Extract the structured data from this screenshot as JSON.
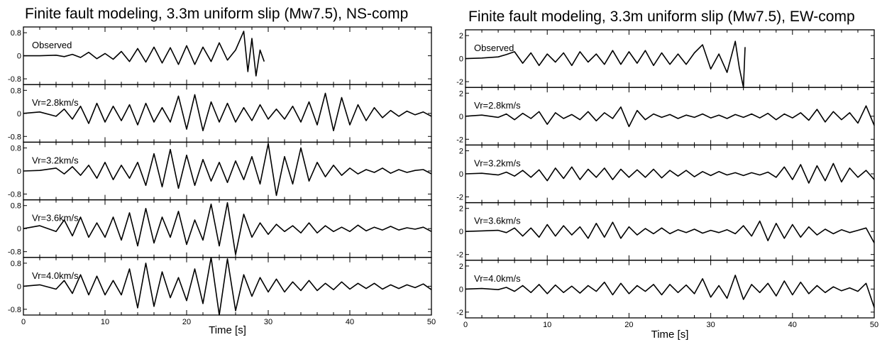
{
  "chart_data": [
    {
      "type": "line",
      "title": "Finite fault modeling, 3.3m uniform slip (Mw7.5), NS-comp",
      "xlabel": "Time [s]",
      "xlim": [
        0,
        50
      ],
      "xticks": [
        "0",
        "10",
        "20",
        "30",
        "40",
        "50"
      ],
      "ylim": [
        -1.0,
        1.0
      ],
      "yticks": [
        "0.8",
        "0",
        "-0.8"
      ],
      "grid": false,
      "series": [
        {
          "name": "Observed",
          "x": [
            0,
            2,
            4,
            5,
            6,
            7,
            8,
            9,
            10,
            11,
            12,
            13,
            14,
            15,
            16,
            17,
            18,
            19,
            20,
            21,
            22,
            23,
            24,
            25,
            26,
            27,
            27.5,
            28,
            28.5,
            29,
            29.5
          ],
          "y": [
            0,
            0,
            0.02,
            -0.03,
            0.05,
            -0.06,
            0.12,
            -0.1,
            0.08,
            -0.12,
            0.15,
            -0.2,
            0.25,
            -0.22,
            0.3,
            -0.25,
            0.28,
            -0.3,
            0.35,
            -0.3,
            0.3,
            -0.2,
            0.45,
            -0.15,
            0.2,
            0.85,
            -0.55,
            0.6,
            -0.7,
            0.2,
            -0.2
          ]
        },
        {
          "name": "Vr=2.8km/s",
          "x": [
            0,
            2,
            4,
            5,
            6,
            7,
            8,
            9,
            10,
            11,
            12,
            13,
            14,
            15,
            16,
            17,
            18,
            19,
            20,
            21,
            22,
            23,
            24,
            25,
            26,
            27,
            28,
            29,
            30,
            31,
            32,
            33,
            34,
            35,
            36,
            37,
            38,
            39,
            40,
            41,
            42,
            43,
            44,
            45,
            46,
            47,
            48,
            49,
            50
          ],
          "y": [
            0,
            0.05,
            -0.1,
            0.15,
            -0.2,
            0.25,
            -0.35,
            0.35,
            -0.3,
            0.25,
            -0.25,
            0.3,
            -0.4,
            0.35,
            -0.3,
            0.2,
            -0.3,
            0.6,
            -0.55,
            0.65,
            -0.6,
            0.4,
            -0.3,
            0.35,
            -0.3,
            0.2,
            -0.25,
            0.3,
            -0.2,
            0.15,
            -0.2,
            0.25,
            -0.3,
            0.4,
            -0.4,
            0.7,
            -0.6,
            0.55,
            -0.4,
            0.3,
            -0.25,
            0.2,
            -0.15,
            0.1,
            -0.1,
            0.08,
            -0.05,
            0.05,
            -0.1
          ]
        },
        {
          "name": "Vr=3.2km/s",
          "x": [
            0,
            2,
            4,
            5,
            6,
            7,
            8,
            9,
            10,
            11,
            12,
            13,
            14,
            15,
            16,
            17,
            18,
            19,
            20,
            21,
            22,
            23,
            24,
            25,
            26,
            27,
            28,
            29,
            30,
            31,
            32,
            33,
            34,
            35,
            36,
            37,
            38,
            39,
            40,
            41,
            42,
            43,
            44,
            45,
            46,
            47,
            48,
            49,
            50
          ],
          "y": [
            0,
            0.02,
            0.1,
            -0.1,
            0.15,
            -0.15,
            0.2,
            -0.25,
            0.3,
            -0.3,
            0.2,
            -0.25,
            0.3,
            -0.5,
            0.6,
            -0.55,
            0.75,
            -0.6,
            0.55,
            -0.5,
            0.4,
            -0.35,
            0.3,
            -0.4,
            0.35,
            -0.3,
            0.5,
            -0.45,
            0.95,
            -0.85,
            0.5,
            -0.45,
            0.8,
            -0.35,
            0.3,
            -0.2,
            0.2,
            -0.15,
            0.1,
            -0.1,
            0.05,
            -0.05,
            0.1,
            -0.08,
            0.05,
            -0.05,
            0.02,
            0.05,
            -0.1
          ]
        },
        {
          "name": "Vr=3.6km/s",
          "x": [
            0,
            2,
            4,
            5,
            6,
            7,
            8,
            9,
            10,
            11,
            12,
            13,
            14,
            15,
            16,
            17,
            18,
            19,
            20,
            21,
            22,
            23,
            24,
            25,
            26,
            27,
            28,
            29,
            30,
            31,
            32,
            33,
            34,
            35,
            36,
            37,
            38,
            39,
            40,
            41,
            42,
            43,
            44,
            45,
            46,
            47,
            48,
            49,
            50
          ],
          "y": [
            0,
            0.1,
            -0.1,
            0.3,
            -0.25,
            0.4,
            -0.3,
            0.2,
            -0.3,
            0.4,
            -0.4,
            0.55,
            -0.6,
            0.7,
            -0.5,
            0.4,
            -0.3,
            0.6,
            -0.55,
            0.3,
            -0.4,
            0.85,
            -0.6,
            0.9,
            -0.9,
            0.5,
            -0.3,
            0.2,
            -0.2,
            0.15,
            -0.1,
            0.1,
            -0.15,
            0.2,
            -0.15,
            0.1,
            -0.1,
            0.05,
            -0.1,
            0.12,
            -0.08,
            0.05,
            -0.05,
            0.08,
            -0.05,
            0.03,
            -0.02,
            0.05,
            -0.1
          ]
        },
        {
          "name": "Vr=4.0km/s",
          "x": [
            0,
            2,
            4,
            5,
            6,
            7,
            8,
            9,
            10,
            11,
            12,
            13,
            14,
            15,
            16,
            17,
            18,
            19,
            20,
            21,
            22,
            23,
            24,
            25,
            26,
            27,
            28,
            29,
            30,
            31,
            32,
            33,
            34,
            35,
            36,
            37,
            38,
            39,
            40,
            41,
            42,
            43,
            44,
            45,
            46,
            47,
            48,
            49,
            50
          ],
          "y": [
            0,
            0.05,
            -0.1,
            0.2,
            -0.25,
            0.4,
            -0.3,
            0.35,
            -0.3,
            0.2,
            -0.3,
            0.6,
            -0.75,
            0.8,
            -0.7,
            0.5,
            -0.4,
            0.3,
            -0.5,
            0.6,
            -0.6,
            1.0,
            -1.0,
            0.95,
            -0.85,
            0.4,
            -0.35,
            0.3,
            -0.2,
            0.25,
            -0.2,
            0.15,
            -0.15,
            0.2,
            -0.15,
            0.1,
            -0.12,
            0.15,
            -0.1,
            0.1,
            -0.08,
            0.1,
            -0.1,
            0.05,
            -0.08,
            0.05,
            -0.05,
            0.08,
            -0.12
          ]
        }
      ]
    },
    {
      "type": "line",
      "title": "Finite fault modeling, 3.3m uniform slip (Mw7.5), EW-comp",
      "xlabel": "Time [s]",
      "xlim": [
        0,
        50
      ],
      "xticks": [
        "0",
        "10",
        "20",
        "30",
        "40",
        "50"
      ],
      "ylim": [
        -2.5,
        2.5
      ],
      "yticks": [
        "2",
        "0",
        "-2"
      ],
      "grid": false,
      "series": [
        {
          "name": "Observed",
          "x": [
            0,
            2,
            4,
            5,
            6,
            7,
            8,
            9,
            10,
            11,
            12,
            13,
            14,
            15,
            16,
            17,
            18,
            19,
            20,
            21,
            22,
            23,
            24,
            25,
            26,
            27,
            28,
            29,
            30,
            31,
            32,
            33,
            33.5,
            34,
            34.2
          ],
          "y": [
            0,
            0.05,
            0.15,
            0.35,
            0.6,
            -0.4,
            0.5,
            -0.6,
            0.4,
            -0.3,
            0.5,
            -0.6,
            0.6,
            -0.3,
            0.4,
            -0.5,
            0.7,
            -0.5,
            0.6,
            -0.4,
            0.7,
            -0.6,
            0.5,
            -0.5,
            0.4,
            -0.5,
            0.5,
            1.2,
            -0.9,
            0.4,
            -1.2,
            1.5,
            -0.8,
            -2.5,
            1.0
          ]
        },
        {
          "name": "Vr=2.8km/s",
          "x": [
            0,
            2,
            4,
            5,
            6,
            7,
            8,
            9,
            10,
            11,
            12,
            13,
            14,
            15,
            16,
            17,
            18,
            19,
            20,
            21,
            22,
            23,
            24,
            25,
            26,
            27,
            28,
            29,
            30,
            31,
            32,
            33,
            34,
            35,
            36,
            37,
            38,
            39,
            40,
            41,
            42,
            43,
            44,
            45,
            46,
            47,
            48,
            49,
            50
          ],
          "y": [
            0,
            0.1,
            -0.1,
            0.2,
            -0.3,
            0.25,
            -0.2,
            0.4,
            -0.7,
            0.3,
            -0.2,
            0.15,
            -0.3,
            0.4,
            -0.4,
            0.3,
            -0.2,
            0.8,
            -0.9,
            0.5,
            -0.3,
            0.2,
            -0.1,
            0.15,
            -0.2,
            0.1,
            -0.1,
            0.2,
            -0.15,
            0.1,
            -0.2,
            0.15,
            -0.1,
            0.2,
            -0.15,
            0.25,
            -0.3,
            0.2,
            -0.15,
            0.3,
            -0.35,
            0.6,
            -0.5,
            0.4,
            -0.3,
            0.3,
            -0.6,
            0.9,
            -0.8
          ]
        },
        {
          "name": "Vr=3.2km/s",
          "x": [
            0,
            2,
            4,
            5,
            6,
            7,
            8,
            9,
            10,
            11,
            12,
            13,
            14,
            15,
            16,
            17,
            18,
            19,
            20,
            21,
            22,
            23,
            24,
            25,
            26,
            27,
            28,
            29,
            30,
            31,
            32,
            33,
            34,
            35,
            36,
            37,
            38,
            39,
            40,
            41,
            42,
            43,
            44,
            45,
            46,
            47,
            48,
            49,
            50
          ],
          "y": [
            0,
            0.05,
            -0.1,
            0.15,
            -0.2,
            0.3,
            -0.3,
            0.35,
            -0.6,
            0.5,
            -0.4,
            0.6,
            -0.5,
            0.4,
            -0.3,
            0.5,
            -0.5,
            0.4,
            -0.3,
            0.35,
            -0.3,
            0.4,
            -0.35,
            0.3,
            -0.2,
            0.3,
            -0.25,
            0.2,
            -0.15,
            0.2,
            -0.1,
            0.1,
            -0.15,
            0.1,
            -0.1,
            0.15,
            -0.3,
            0.6,
            -0.5,
            0.8,
            -0.8,
            0.7,
            -0.6,
            0.9,
            -0.7,
            0.5,
            -0.3,
            0.3,
            -0.5
          ]
        },
        {
          "name": "Vr=3.6km/s",
          "x": [
            0,
            2,
            4,
            5,
            6,
            7,
            8,
            9,
            10,
            11,
            12,
            13,
            14,
            15,
            16,
            17,
            18,
            19,
            20,
            21,
            22,
            23,
            24,
            25,
            26,
            27,
            28,
            29,
            30,
            31,
            32,
            33,
            34,
            35,
            36,
            37,
            38,
            39,
            40,
            41,
            42,
            43,
            44,
            45,
            46,
            47,
            48,
            49,
            50
          ],
          "y": [
            0,
            0.05,
            0.1,
            -0.1,
            0.3,
            -0.4,
            0.3,
            -0.5,
            0.6,
            -0.4,
            0.5,
            -0.3,
            0.4,
            -0.6,
            0.7,
            -0.5,
            0.8,
            -0.6,
            0.4,
            -0.3,
            0.25,
            -0.2,
            0.3,
            -0.2,
            0.15,
            -0.1,
            0.2,
            -0.15,
            0.1,
            -0.1,
            0.15,
            -0.2,
            0.5,
            -0.4,
            0.9,
            -0.8,
            0.7,
            -0.6,
            0.6,
            -0.5,
            0.4,
            -0.3,
            0.2,
            -0.2,
            0.15,
            -0.1,
            0.1,
            0.3,
            -1.0
          ]
        },
        {
          "name": "Vr=4.0km/s",
          "x": [
            0,
            2,
            4,
            5,
            6,
            7,
            8,
            9,
            10,
            11,
            12,
            13,
            14,
            15,
            16,
            17,
            18,
            19,
            20,
            21,
            22,
            23,
            24,
            25,
            26,
            27,
            28,
            29,
            30,
            31,
            32,
            33,
            34,
            35,
            36,
            37,
            38,
            39,
            40,
            41,
            42,
            43,
            44,
            45,
            46,
            47,
            48,
            49,
            50
          ],
          "y": [
            0,
            0.05,
            -0.05,
            0.15,
            -0.2,
            0.3,
            -0.3,
            0.4,
            -0.4,
            0.35,
            -0.3,
            0.25,
            -0.35,
            0.3,
            -0.2,
            0.6,
            -0.5,
            0.5,
            -0.4,
            0.3,
            -0.2,
            0.4,
            -0.5,
            0.4,
            -0.3,
            0.35,
            -0.4,
            0.9,
            -0.7,
            0.3,
            -0.8,
            1.2,
            -0.9,
            0.4,
            -0.3,
            0.5,
            -0.6,
            0.7,
            -0.5,
            0.6,
            -0.4,
            0.3,
            -0.3,
            0.2,
            -0.15,
            0.1,
            -0.2,
            0.5,
            -1.6
          ]
        }
      ]
    }
  ]
}
